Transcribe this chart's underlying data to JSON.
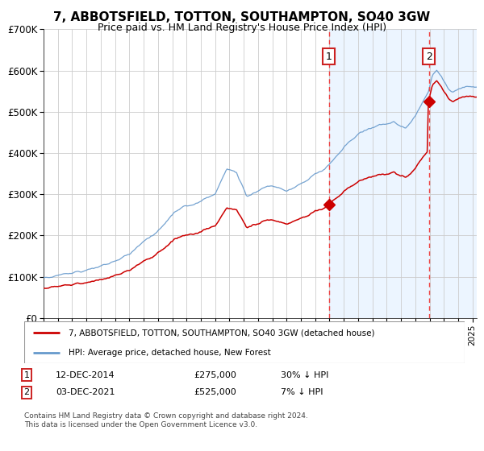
{
  "title": "7, ABBOTSFIELD, TOTTON, SOUTHAMPTON, SO40 3GW",
  "subtitle": "Price paid vs. HM Land Registry's House Price Index (HPI)",
  "legend_line1": "7, ABBOTSFIELD, TOTTON, SOUTHAMPTON, SO40 3GW (detached house)",
  "legend_line2": "HPI: Average price, detached house, New Forest",
  "annotation1_label": "1",
  "annotation1_date": "12-DEC-2014",
  "annotation1_price": "£275,000",
  "annotation1_hpi": "30% ↓ HPI",
  "annotation1_year": 2014.95,
  "annotation1_value": 275000,
  "annotation2_label": "2",
  "annotation2_date": "03-DEC-2021",
  "annotation2_price": "£525,000",
  "annotation2_hpi": "7% ↓ HPI",
  "annotation2_year": 2021.95,
  "annotation2_value": 525000,
  "footer": "Contains HM Land Registry data © Crown copyright and database right 2024.\nThis data is licensed under the Open Government Licence v3.0.",
  "red_color": "#cc0000",
  "blue_color": "#6699cc",
  "shade_color": "#ddeeff",
  "grid_color": "#cccccc",
  "title_fontsize": 11,
  "subtitle_fontsize": 9,
  "ylim": [
    0,
    700000
  ],
  "xlim_start": 1995.0,
  "xlim_end": 2025.3
}
